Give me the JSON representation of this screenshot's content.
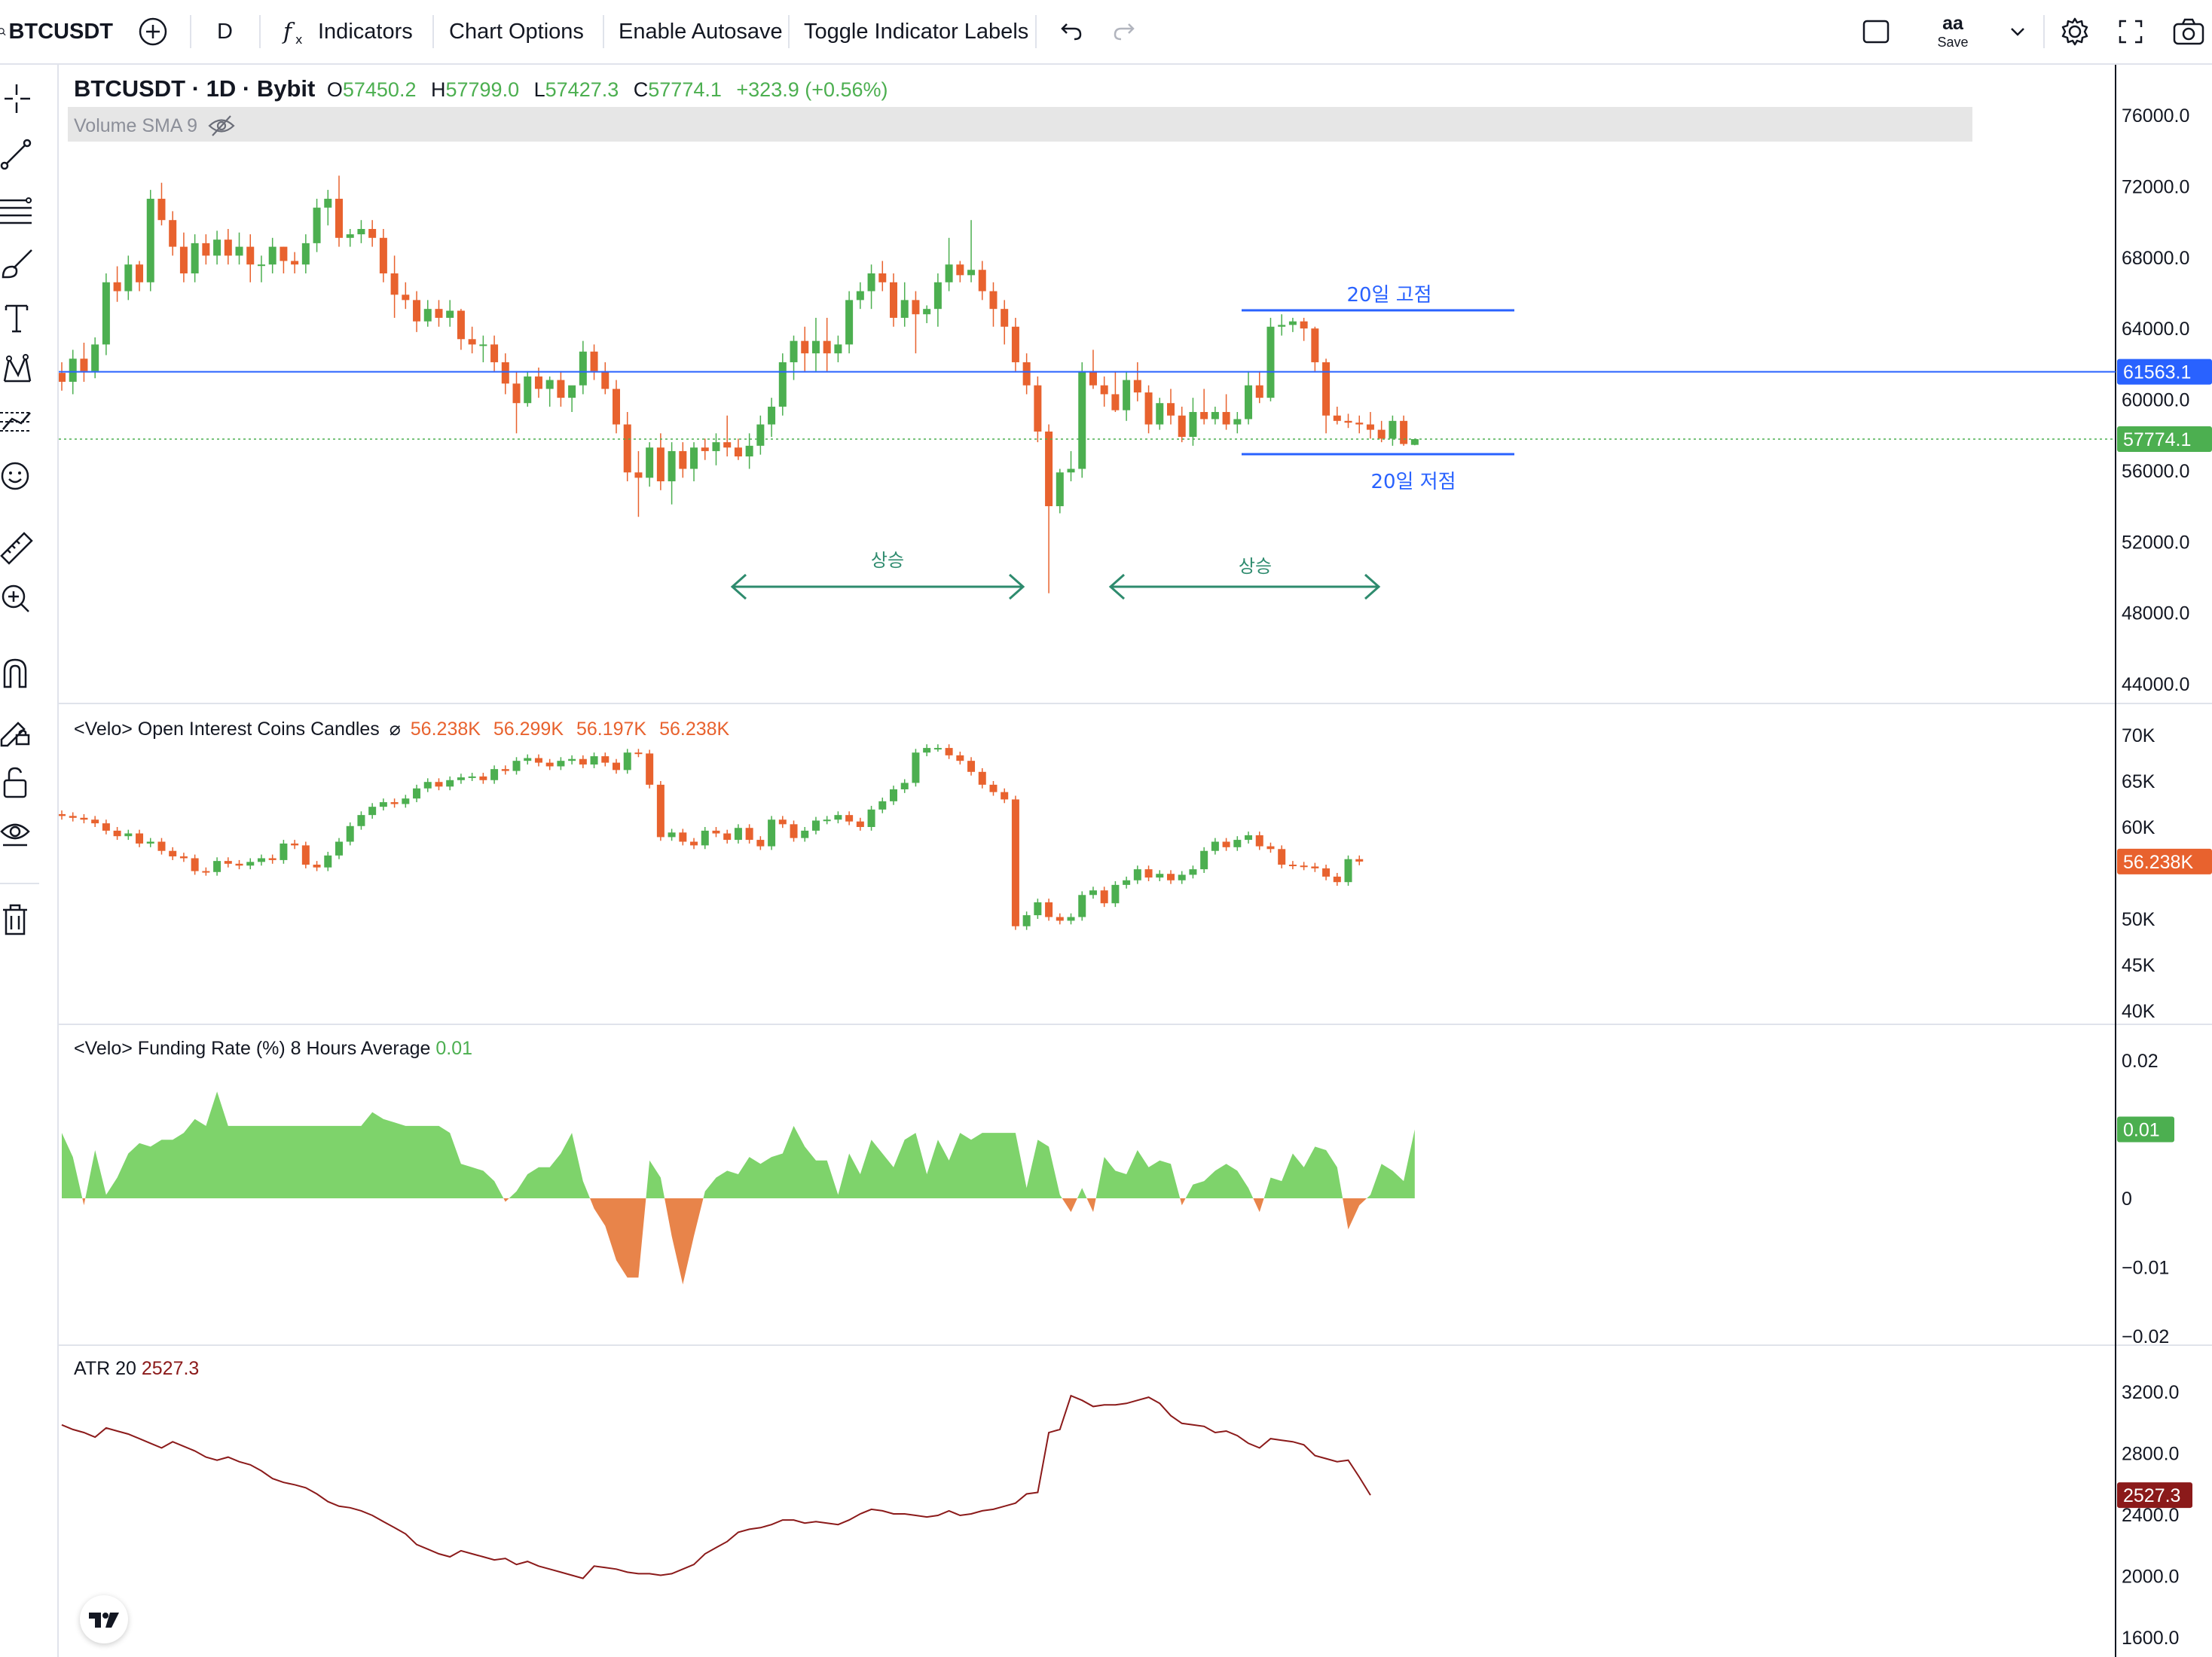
{
  "toolbar": {
    "symbol": "BTCUSDT",
    "interval": "D",
    "indicators_label": "Indicators",
    "chart_options_label": "Chart Options",
    "autosave_label": "Enable Autosave",
    "toggle_labels_label": "Toggle Indicator Labels",
    "layout_name": "aa",
    "save_label": "Save"
  },
  "main_legend": {
    "title": "BTCUSDT · 1D · Bybit",
    "open_key": "O",
    "open": "57450.2",
    "high_key": "H",
    "high": "57799.0",
    "low_key": "L",
    "low": "57427.3",
    "close_key": "C",
    "close": "57774.1",
    "change": "+323.9 (+0.56%)",
    "volume_label": "Volume SMA 9"
  },
  "oi_legend": {
    "title": "<Velo> Open Interest Coins Candles",
    "values": [
      "56.238K",
      "56.299K",
      "56.197K",
      "56.238K"
    ]
  },
  "fr_legend": {
    "title": "<Velo> Funding Rate (%) 8 Hours Average",
    "value": "0.01"
  },
  "atr_legend": {
    "title": "ATR 20",
    "value": "2527.3"
  },
  "annotations": {
    "high20": "20일 고점",
    "low20": "20일 저점",
    "rise1": "상승",
    "rise2": "상승"
  },
  "axes": {
    "price_ticks": [
      "76000.0",
      "72000.0",
      "68000.0",
      "64000.0",
      "60000.0",
      "56000.0",
      "52000.0",
      "48000.0",
      "44000.0"
    ],
    "price_tag_line": "61563.1",
    "price_tag_last": "57774.1",
    "oi_ticks": [
      "70K",
      "65K",
      "60K",
      "50K",
      "45K",
      "40K"
    ],
    "oi_tag": "56.238K",
    "fr_ticks": [
      "0.02",
      "0",
      "−0.01",
      "−0.02"
    ],
    "fr_tag": "0.01",
    "atr_ticks": [
      "3200.0",
      "2800.0",
      "2400.0",
      "2000.0",
      "1600.0"
    ],
    "atr_tag": "2527.3"
  },
  "colors": {
    "up": "#4caf50",
    "down": "#e8622e",
    "level_line": "#2962ff",
    "arrow": "#2e8b6e",
    "atr_line": "#8b1a1a",
    "fr_positive": "#7ed36b",
    "fr_negative": "#e8844a"
  },
  "chart_data": [
    {
      "type": "candlestick",
      "name": "BTCUSDT 1D",
      "ylim": [
        44000,
        76000
      ],
      "horizontal_line": 61563.1,
      "last_price": 57774.1,
      "ohlc": [
        [
          61500,
          62100,
          60500,
          61000
        ],
        [
          61000,
          62800,
          60300,
          62300
        ],
        [
          62300,
          63200,
          61000,
          61600
        ],
        [
          61600,
          63500,
          61200,
          63100
        ],
        [
          63100,
          67100,
          62500,
          66600
        ],
        [
          66600,
          67500,
          65500,
          66100
        ],
        [
          66100,
          68100,
          65600,
          67600
        ],
        [
          67600,
          67800,
          66100,
          66600
        ],
        [
          66600,
          71800,
          66100,
          71300
        ],
        [
          71300,
          72200,
          69800,
          70100
        ],
        [
          70100,
          70600,
          68100,
          68600
        ],
        [
          68600,
          69400,
          66600,
          67100
        ],
        [
          67100,
          69300,
          66600,
          68800
        ],
        [
          68800,
          69300,
          67600,
          68100
        ],
        [
          68100,
          69500,
          67600,
          69000
        ],
        [
          69000,
          69600,
          67600,
          68100
        ],
        [
          68100,
          69400,
          67600,
          68600
        ],
        [
          68600,
          69300,
          66600,
          67600
        ],
        [
          67600,
          68100,
          66600,
          67600
        ],
        [
          67600,
          69100,
          67100,
          68600
        ],
        [
          68600,
          68600,
          67100,
          67800
        ],
        [
          67800,
          68300,
          67100,
          67600
        ],
        [
          67600,
          69300,
          67100,
          68800
        ],
        [
          68800,
          71300,
          68300,
          70800
        ],
        [
          70800,
          71800,
          69800,
          71300
        ],
        [
          71300,
          72600,
          68600,
          69100
        ],
        [
          69100,
          69600,
          68600,
          69300
        ],
        [
          69300,
          70100,
          68800,
          69600
        ],
        [
          69600,
          70100,
          68600,
          69100
        ],
        [
          69100,
          69600,
          66600,
          67100
        ],
        [
          67100,
          68100,
          64600,
          65900
        ],
        [
          65900,
          66600,
          65100,
          65600
        ],
        [
          65600,
          66100,
          63800,
          64400
        ],
        [
          64400,
          65600,
          64100,
          65100
        ],
        [
          65100,
          65600,
          64100,
          64600
        ],
        [
          64600,
          65600,
          64100,
          65000
        ],
        [
          65000,
          65100,
          62800,
          63400
        ],
        [
          63400,
          64100,
          62600,
          63100
        ],
        [
          63100,
          63600,
          62100,
          63100
        ],
        [
          63100,
          63600,
          61600,
          62100
        ],
        [
          62100,
          62600,
          60300,
          60900
        ],
        [
          60900,
          61600,
          58100,
          59800
        ],
        [
          59800,
          61600,
          59600,
          61300
        ],
        [
          61300,
          61800,
          60100,
          60600
        ],
        [
          60600,
          61300,
          59600,
          61100
        ],
        [
          61100,
          61600,
          59600,
          60100
        ],
        [
          60100,
          60600,
          59300,
          60800
        ],
        [
          60800,
          63300,
          60300,
          62700
        ],
        [
          62700,
          63100,
          61100,
          61600
        ],
        [
          61600,
          62100,
          60300,
          60600
        ],
        [
          60600,
          61100,
          58100,
          58600
        ],
        [
          58600,
          59300,
          55400,
          55900
        ],
        [
          55900,
          57100,
          53400,
          55600
        ],
        [
          55600,
          57600,
          55100,
          57300
        ],
        [
          57300,
          58100,
          54900,
          55400
        ],
        [
          55400,
          57600,
          54100,
          57100
        ],
        [
          57100,
          57600,
          55600,
          56100
        ],
        [
          56100,
          57600,
          55400,
          57300
        ],
        [
          57300,
          57800,
          56600,
          57100
        ],
        [
          57100,
          58100,
          56300,
          57600
        ],
        [
          57600,
          59100,
          56800,
          57300
        ],
        [
          57300,
          57800,
          56600,
          56800
        ],
        [
          56800,
          58100,
          56100,
          57400
        ],
        [
          57400,
          59100,
          56900,
          58600
        ],
        [
          58600,
          60100,
          57900,
          59600
        ],
        [
          59600,
          62600,
          59100,
          62100
        ],
        [
          62100,
          63600,
          61100,
          63300
        ],
        [
          63300,
          64100,
          61600,
          62600
        ],
        [
          62600,
          64600,
          61600,
          63300
        ],
        [
          63300,
          64600,
          61600,
          62600
        ],
        [
          62600,
          63600,
          62100,
          63100
        ],
        [
          63100,
          66100,
          62600,
          65600
        ],
        [
          65600,
          66600,
          65100,
          66100
        ],
        [
          66100,
          67600,
          65100,
          67100
        ],
        [
          67100,
          67800,
          66100,
          66600
        ],
        [
          66600,
          67100,
          64100,
          64600
        ],
        [
          64600,
          66600,
          64100,
          65600
        ],
        [
          65600,
          66100,
          62600,
          64800
        ],
        [
          64800,
          65300,
          64300,
          65100
        ],
        [
          65100,
          67100,
          64100,
          66600
        ],
        [
          66600,
          69100,
          66100,
          67600
        ],
        [
          67600,
          67800,
          66600,
          67000
        ],
        [
          67000,
          70100,
          66600,
          67300
        ],
        [
          67300,
          67800,
          65600,
          66100
        ],
        [
          66100,
          66600,
          64100,
          65100
        ],
        [
          65100,
          65600,
          63100,
          64100
        ],
        [
          64100,
          64600,
          61600,
          62100
        ],
        [
          62100,
          62600,
          60300,
          60800
        ],
        [
          60800,
          61300,
          57600,
          58200
        ],
        [
          58200,
          58600,
          49100,
          54000
        ],
        [
          54000,
          56100,
          53600,
          55900
        ],
        [
          55900,
          57100,
          55400,
          56100
        ],
        [
          56100,
          62100,
          55600,
          61600
        ],
        [
          61600,
          62800,
          60600,
          60800
        ],
        [
          60800,
          61300,
          59600,
          60300
        ],
        [
          60300,
          61600,
          59300,
          59400
        ],
        [
          59400,
          61600,
          58800,
          61100
        ],
        [
          61100,
          62100,
          59900,
          60400
        ],
        [
          60400,
          60800,
          58100,
          58600
        ],
        [
          58600,
          60100,
          58300,
          59800
        ],
        [
          59800,
          60600,
          58600,
          59100
        ],
        [
          59100,
          59600,
          57600,
          57900
        ],
        [
          57900,
          60100,
          57400,
          59300
        ],
        [
          59300,
          60600,
          58600,
          58900
        ],
        [
          58900,
          59600,
          58600,
          59300
        ],
        [
          59300,
          60300,
          58300,
          58600
        ],
        [
          58600,
          59300,
          58100,
          58900
        ],
        [
          58900,
          61600,
          58600,
          60800
        ],
        [
          60800,
          61600,
          59800,
          60100
        ],
        [
          60100,
          64600,
          59900,
          64100
        ],
        [
          64100,
          64800,
          63600,
          64200
        ],
        [
          64200,
          64600,
          63800,
          64400
        ],
        [
          64400,
          64600,
          63300,
          64000
        ],
        [
          64000,
          64100,
          61600,
          62100
        ],
        [
          62100,
          62300,
          58100,
          59100
        ],
        [
          59100,
          59600,
          58600,
          58800
        ],
        [
          58800,
          59200,
          58400,
          58700
        ],
        [
          58700,
          59100,
          58100,
          58600
        ],
        [
          58600,
          59300,
          57800,
          58300
        ],
        [
          58300,
          58800,
          57600,
          57800
        ],
        [
          57800,
          59100,
          57400,
          58800
        ],
        [
          58800,
          59100,
          57400,
          57500
        ],
        [
          57450.2,
          57799.0,
          57427.3,
          57774.1
        ]
      ]
    },
    {
      "type": "candlestick",
      "name": "<Velo> Open Interest Coins Candles",
      "ylim": [
        40000,
        70000
      ],
      "last_value": 56238,
      "close": [
        61200,
        61000,
        60800,
        60400,
        59600,
        59000,
        59300,
        58200,
        58400,
        57400,
        56800,
        56600,
        55200,
        55100,
        56300,
        56000,
        55800,
        56200,
        56600,
        56400,
        58200,
        58000,
        55900,
        55600,
        56900,
        58400,
        60100,
        61300,
        62200,
        62700,
        62500,
        63100,
        64200,
        64900,
        64400,
        65100,
        65400,
        65500,
        65100,
        66300,
        66100,
        67200,
        67500,
        67000,
        66600,
        67200,
        67400,
        66800,
        67700,
        67000,
        66200,
        68100,
        68000,
        64600,
        58900,
        59400,
        58400,
        58000,
        59600,
        59300,
        58600,
        59900,
        58600,
        57900,
        60800,
        60300,
        58800,
        59600,
        60700,
        60800,
        61300,
        60600,
        60000,
        61900,
        62800,
        64100,
        64800,
        68100,
        68600,
        68600,
        67800,
        67200,
        66000,
        64600,
        63800,
        63000,
        49200,
        50400,
        51800,
        50200,
        49800,
        50200,
        52600,
        53100,
        51700,
        53700,
        54200,
        55400,
        54500,
        54900,
        54200,
        54800,
        55400,
        57400,
        58400,
        57800,
        58600,
        59100,
        57900,
        57600,
        55900,
        55800,
        55700,
        55500,
        54600,
        54000,
        56500,
        56238
      ]
    },
    {
      "type": "area",
      "name": "<Velo> Funding Rate (%) 8 Hours Average",
      "ylim": [
        -0.02,
        0.02
      ],
      "last_value": 0.01,
      "values": [
        0.0095,
        0.006,
        -0.001,
        0.007,
        0.0005,
        0.003,
        0.0065,
        0.008,
        0.0075,
        0.0085,
        0.0085,
        0.0095,
        0.0115,
        0.0105,
        0.0155,
        0.0105,
        0.0105,
        0.0105,
        0.0105,
        0.0105,
        0.0105,
        0.0105,
        0.0105,
        0.0105,
        0.0105,
        0.0105,
        0.0105,
        0.0105,
        0.0125,
        0.0115,
        0.011,
        0.0105,
        0.0105,
        0.0105,
        0.0105,
        0.0095,
        0.005,
        0.0045,
        0.004,
        0.0025,
        -0.0005,
        0.001,
        0.0035,
        0.0045,
        0.0045,
        0.0065,
        0.0095,
        0.0025,
        -0.0015,
        -0.004,
        -0.009,
        -0.0115,
        -0.0115,
        0.0055,
        0.003,
        -0.0055,
        -0.0125,
        -0.0055,
        0.001,
        0.003,
        0.004,
        0.0035,
        0.006,
        0.005,
        0.006,
        0.0065,
        0.0105,
        0.0075,
        0.0055,
        0.0055,
        0.0005,
        0.0065,
        0.0035,
        0.0085,
        0.0065,
        0.0045,
        0.0085,
        0.0095,
        0.0035,
        0.0085,
        0.0055,
        0.0095,
        0.0085,
        0.0095,
        0.0095,
        0.0095,
        0.0095,
        0.0015,
        0.0085,
        0.0075,
        0.0005,
        -0.002,
        0.0015,
        -0.002,
        0.006,
        0.004,
        0.0035,
        0.007,
        0.0045,
        0.0055,
        0.005,
        -0.001,
        0.002,
        0.0025,
        0.004,
        0.005,
        0.004,
        0.0015,
        -0.002,
        0.003,
        0.0025,
        0.0065,
        0.0045,
        0.0075,
        0.007,
        0.0045,
        -0.0045,
        -0.001,
        0.0005,
        0.005,
        0.004,
        0.0025,
        0.01
      ]
    },
    {
      "type": "line",
      "name": "ATR 20",
      "ylim": [
        1600,
        3200
      ],
      "last_value": 2527.3,
      "values": [
        2985,
        2955,
        2935,
        2905,
        2965,
        2945,
        2925,
        2895,
        2865,
        2835,
        2875,
        2845,
        2815,
        2775,
        2755,
        2775,
        2745,
        2725,
        2685,
        2635,
        2610,
        2595,
        2575,
        2535,
        2485,
        2455,
        2445,
        2425,
        2395,
        2355,
        2315,
        2275,
        2205,
        2175,
        2145,
        2125,
        2165,
        2145,
        2125,
        2105,
        2115,
        2075,
        2095,
        2065,
        2045,
        2025,
        2005,
        1985,
        2065,
        2055,
        2045,
        2025,
        2015,
        2015,
        2005,
        2015,
        2045,
        2075,
        2145,
        2185,
        2225,
        2285,
        2305,
        2315,
        2335,
        2365,
        2365,
        2345,
        2355,
        2345,
        2335,
        2365,
        2405,
        2435,
        2425,
        2405,
        2405,
        2395,
        2385,
        2395,
        2425,
        2395,
        2405,
        2425,
        2435,
        2455,
        2475,
        2535,
        2545,
        2935,
        2955,
        3175,
        3145,
        3105,
        3115,
        3115,
        3125,
        3145,
        3165,
        3125,
        3045,
        2995,
        2985,
        2975,
        2935,
        2945,
        2915,
        2865,
        2835,
        2895,
        2885,
        2875,
        2855,
        2785,
        2765,
        2745,
        2755,
        2645,
        2527.3
      ]
    }
  ]
}
